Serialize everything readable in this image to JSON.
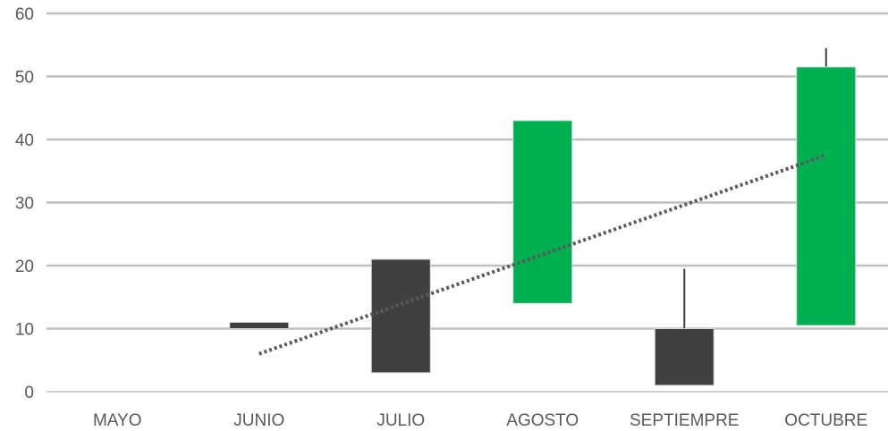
{
  "chart_data": {
    "type": "candlestick",
    "categories": [
      "MAYO",
      "JUNIO",
      "JULIO",
      "AGOSTO",
      "SEPTIEMPRE",
      "OCTUBRE"
    ],
    "series": [
      {
        "values": [
          {
            "open": null,
            "close": null,
            "high": null,
            "low": null
          },
          {
            "open": 11,
            "close": 10,
            "high": 11,
            "low": 10
          },
          {
            "open": 21,
            "close": 3,
            "high": 21,
            "low": 3
          },
          {
            "open": 14,
            "close": 43,
            "high": 43,
            "low": 14
          },
          {
            "open": 10,
            "close": 1,
            "high": 19.5,
            "low": 1
          },
          {
            "open": 10.5,
            "close": 51.5,
            "high": 54.5,
            "low": 10.5
          }
        ]
      }
    ],
    "trendline": {
      "style": "dotted",
      "start": {
        "category": "JUNIO",
        "value": 6
      },
      "end": {
        "category": "OCTUBRE",
        "value": 37.5
      }
    },
    "ylim": [
      0,
      60
    ],
    "yticks": [
      0,
      10,
      20,
      30,
      40,
      50,
      60
    ],
    "grid": true,
    "colors": {
      "up": "#00b050",
      "down": "#404040",
      "grid": "#bfbfbf",
      "trend": "#595959",
      "text": "#595959"
    },
    "title": "",
    "xlabel": "",
    "ylabel": ""
  }
}
